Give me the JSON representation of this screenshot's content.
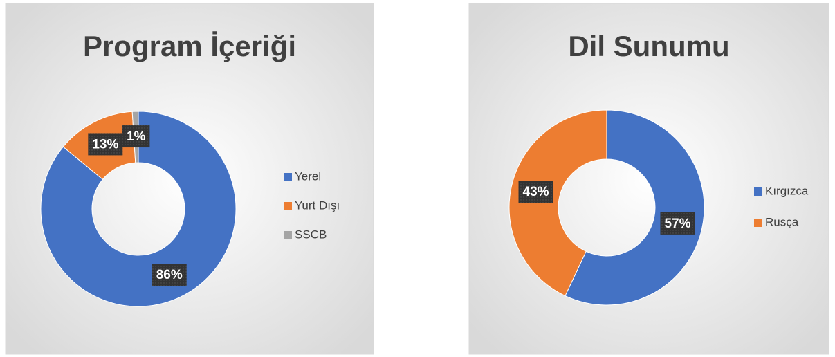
{
  "chart_data": [
    {
      "type": "donut",
      "title": "Program İçeriği",
      "categories": [
        "Yerel",
        "Yurt Dışı",
        "SSCB"
      ],
      "values": [
        86,
        13,
        1
      ],
      "value_labels": [
        "86%",
        "13%",
        "1%"
      ],
      "colors": [
        "#4472c4",
        "#ed7d31",
        "#a5a5a5"
      ],
      "legend": "right"
    },
    {
      "type": "donut",
      "title": "Dil Sunumu",
      "categories": [
        "Kırgızca",
        "Rusça"
      ],
      "values": [
        57,
        43
      ],
      "value_labels": [
        "57%",
        "43%"
      ],
      "colors": [
        "#4472c4",
        "#ed7d31"
      ],
      "legend": "right"
    }
  ]
}
